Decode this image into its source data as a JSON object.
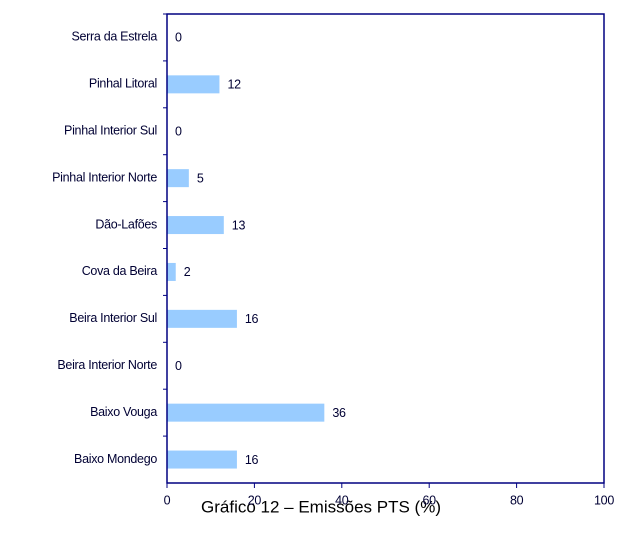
{
  "chart_data": {
    "type": "bar",
    "orientation": "horizontal",
    "title": "Gráfico 12 – Emissões PTS (%)",
    "categories": [
      "Serra da Estrela",
      "Pinhal Litoral",
      "Pinhal Interior Sul",
      "Pinhal Interior Norte",
      "Dão-Lafões",
      "Cova da Beira",
      "Beira Interior Sul",
      "Beira Interior Norte",
      "Baixo Vouga",
      "Baixo Mondego"
    ],
    "values": [
      0,
      12,
      0,
      5,
      13,
      2,
      16,
      0,
      36,
      16
    ],
    "color": "#99ccff",
    "xlim": [
      0,
      100
    ],
    "xticks": [
      0,
      20,
      40,
      60,
      80,
      100
    ],
    "grid": false
  }
}
